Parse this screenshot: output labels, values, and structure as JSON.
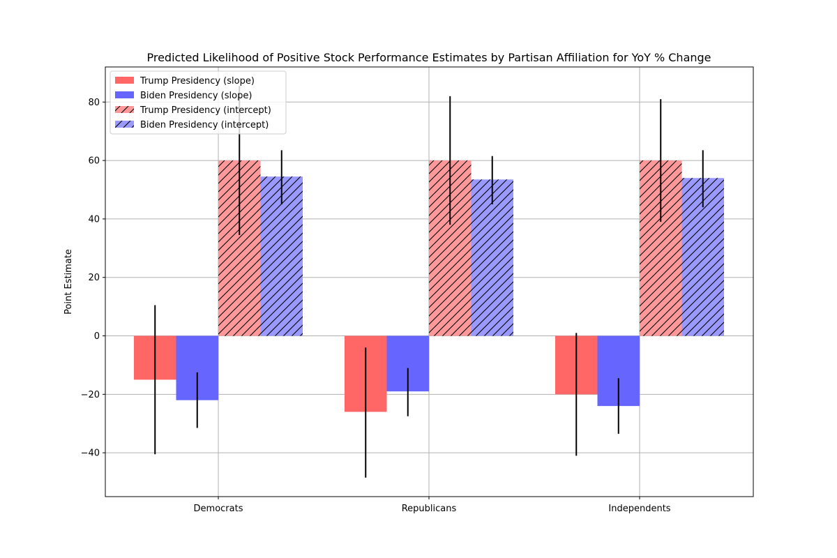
{
  "chart_data": {
    "type": "bar",
    "title": "Predicted Likelihood of Positive Stock Performance Estimates by Partisan Affiliation for YoY % Change",
    "xlabel": "",
    "ylabel": "Point Estimate",
    "categories": [
      "Democrats",
      "Republicans",
      "Independents"
    ],
    "ylim": [
      -55,
      92
    ],
    "yticks": [
      -40,
      -20,
      0,
      20,
      40,
      60,
      80
    ],
    "grid": true,
    "legend_position": "top-left",
    "series": [
      {
        "name": "Trump Presidency (slope)",
        "color": "#ff6666",
        "hatch": false,
        "values": [
          -15,
          -26,
          -20
        ],
        "err_low": [
          -40.5,
          -48.5,
          -41
        ],
        "err_high": [
          10.5,
          -4,
          1
        ]
      },
      {
        "name": "Biden Presidency (slope)",
        "color": "#6666ff",
        "hatch": false,
        "values": [
          -22,
          -19,
          -24
        ],
        "err_low": [
          -31.5,
          -27.5,
          -33.5
        ],
        "err_high": [
          -12.5,
          -11,
          -14.5
        ]
      },
      {
        "name": "Trump Presidency (intercept)",
        "color": "#ff9999",
        "hatch": true,
        "values": [
          60,
          60,
          60
        ],
        "err_low": [
          34.5,
          38,
          39
        ],
        "err_high": [
          85.5,
          82,
          81
        ]
      },
      {
        "name": "Biden Presidency (intercept)",
        "color": "#9999ff",
        "hatch": true,
        "values": [
          54.5,
          53.5,
          54
        ],
        "err_low": [
          45,
          45,
          44
        ],
        "err_high": [
          63.5,
          61.5,
          63.5
        ]
      }
    ]
  }
}
